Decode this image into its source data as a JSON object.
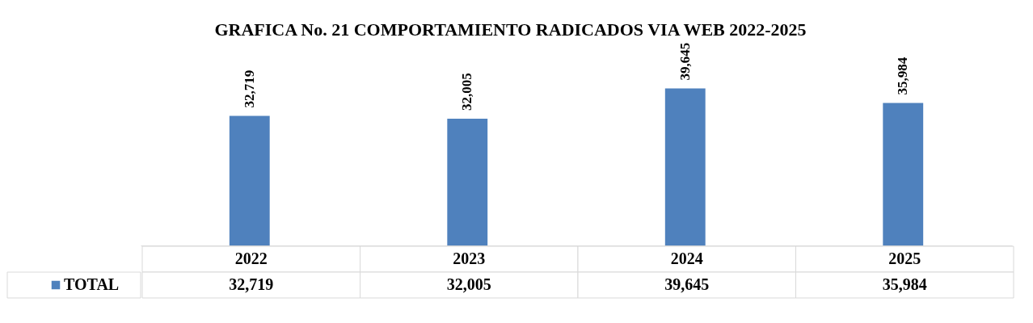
{
  "chart_data": {
    "type": "bar",
    "title": "GRAFICA No. 21 COMPORTAMIENTO RADICADOS VIA WEB 2022-2025",
    "relative": false,
    "categories": [
      "2022",
      "2023",
      "2024",
      "2025"
    ],
    "series": [
      {
        "name": "TOTAL",
        "color": "#4f81bd",
        "values": [
          32719,
          32005,
          39645,
          35984
        ],
        "value_labels": [
          "32,719",
          "32,005",
          "39,645",
          "35,984"
        ]
      }
    ],
    "legend": "bottom left"
  }
}
